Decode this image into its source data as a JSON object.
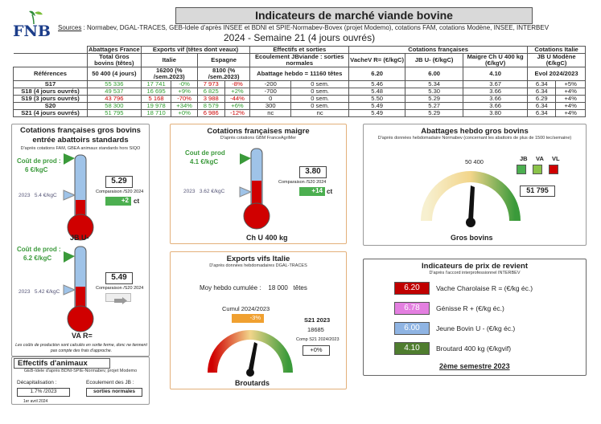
{
  "header": {
    "title": "Indicateurs de marché viande bovine",
    "logo": "FNB",
    "sources_label": "Sources",
    "sources_text": " : Normabev, DGAL-TRACES, GEB-Idele d'après INSEE et BDNI et SPIE-Normabev-Bovex (projet Modemo), cotations FAM, cotations Modène, INSEE, INTERBEV",
    "week": "2024 - Semaine 21 (4 jours ouvrés)"
  },
  "table": {
    "h1": [
      "Abattages France",
      "Exports vif (têtes dont veaux)",
      "Effectifs et sorties",
      "Cotations françaises",
      "Cotations Italie"
    ],
    "h2": [
      "Total Gros bovins (têtes)",
      "Italie",
      "Espagne",
      "Ecoulement JBviande : sorties normales",
      "VacheV R= (€/kgC)",
      "JB U- (€/kgC)",
      "Maigre Ch U 400 kg (€/kgV)",
      "JB U Modène (€/kgC)"
    ],
    "ref": [
      "Références",
      "50 400 (4 jours)",
      "16200 (% /sem.2023)",
      "8100 (% /sem.2023)",
      "Abattage hebdo = 11160 têtes",
      "6.20",
      "6.00",
      "4.10",
      "Evol 2024/2023"
    ],
    "rows": [
      [
        "S17",
        "55 336",
        "17 741",
        "-0%",
        "7 973",
        "-8%",
        "-200",
        "0 sem.",
        "5.46",
        "5.34",
        "3.67",
        "6.34",
        "+5%"
      ],
      [
        "S18 (4 jours ouvrés)",
        "49 537",
        "16 695",
        "+9%",
        "6 825",
        "+2%",
        "-700",
        "0 sem.",
        "5.48",
        "5.30",
        "3.66",
        "6.34",
        "+4%"
      ],
      [
        "S19 (3 jours ouvrés)",
        "43 796",
        "5 168",
        "-70%",
        "3 988",
        "-44%",
        "0",
        "0 sem.",
        "5.50",
        "5.29",
        "3.66",
        "6.29",
        "+4%"
      ],
      [
        "S20",
        "58 300",
        "19 978",
        "+34%",
        "8 579",
        "+6%",
        "300",
        "0 sem.",
        "5.49",
        "5.27",
        "3.66",
        "6.34",
        "+4%"
      ],
      [
        "S21 (4 jours ouvrés)",
        "51 795",
        "18 710",
        "+0%",
        "6 986",
        "-12%",
        "nc",
        "nc",
        "5.49",
        "5.29",
        "3.80",
        "6.34",
        "+4%"
      ]
    ]
  },
  "p1": {
    "title": "Cotations françaises gros bovins entrée abattoirs standards",
    "sub": "D'après cotations FAM, GBEA animaux standards hors SIQO",
    "cout1": "Coût de prod :",
    "cout1v": "6 €/kgC",
    "y1": "2023",
    "y1v": "5.4 €/kgC",
    "v1": "5.29",
    "cmp1": "Comparaison /S20 2024",
    "d1": "+2",
    "ct1": "ct",
    "lab1": "JB U-",
    "cout2": "Coût de prod :",
    "cout2v": "6.2 €/kgC",
    "y2": "2023",
    "y2v": "5.42 €/kgC",
    "v2": "5.49",
    "cmp2": "Comparaison /S20 2024",
    "lab2": "VA R=",
    "note": "Les coûts de production sont calculés en sortie ferme, donc ne tiennent pas compte des frais d'approche."
  },
  "p2": {
    "title": "Cotations françaises maigre",
    "sub": "D'après cotations GBM FranceAgriMer",
    "cout": "Cout de prod",
    "coutv": "4.1 €/kgC",
    "y": "2023",
    "yv": "3.62 €/kgC",
    "v": "3.80",
    "cmp": "Comparaison /S20 2024",
    "d": "+14",
    "ct": "ct",
    "lab": "Ch U 400 kg"
  },
  "p3": {
    "title": "Abattages hebdo gros bovins",
    "sub": "D'après données hebdomadaire Normabev (concernant les abattoirs de plus de 1500 tec/semaine)",
    "ref": "50 400",
    "jb": "JB",
    "va": "VA",
    "vl": "VL",
    "v": "51 795",
    "lab": "Gros bovins"
  },
  "p4": {
    "title": "Exports vifs  Italie",
    "sub": "D'après données hebdomadaires DGAL-TRACES",
    "moy": "Moy hebdo cumulée :",
    "moyv": "18 000",
    "tetes": "têtes",
    "cumul": "Cumul 2024/2023",
    "cumulv": "-3%",
    "s": "S21 2023",
    "sv": "18685",
    "cmp": "Comp S21 2024/2023",
    "cmpv": "+0%",
    "lab": "Broutards"
  },
  "p5": {
    "title": "Indicateurs de prix de revient",
    "sub": "D'après l'accord interprofessionnel INTERBEV",
    "items": [
      {
        "v": "6.20",
        "l": "Vache Charolaise R = (€/kg éc.)",
        "c": "#c00000"
      },
      {
        "v": "6.78",
        "l": "Génisse R + (€/kg éc.)",
        "c": "#e37fe0"
      },
      {
        "v": "6.00",
        "l": "Jeune Bovin U - (€/kg éc.)",
        "c": "#8fb4e3"
      },
      {
        "v": "4.10",
        "l": "Broutard 400 kg (€/kgvif)",
        "c": "#4f7d2f"
      }
    ],
    "sem": "2ème semestre 2023"
  },
  "p6": {
    "title": "Effectifs d'animaux",
    "sub": "GEB-Idele d'après BDNI-SPIE-Normabev, projet Modemo",
    "dec": "Décapitalisation :",
    "decv": "1.7% /2023",
    "ecl": "Ecoulement des JB :",
    "eclv": "sorties normales",
    "date": "1er avril 2024"
  },
  "colors": {
    "green": "#2e9e2e",
    "red": "#c00000",
    "thermo": "#d00000",
    "blue": "#9fc3e8"
  }
}
